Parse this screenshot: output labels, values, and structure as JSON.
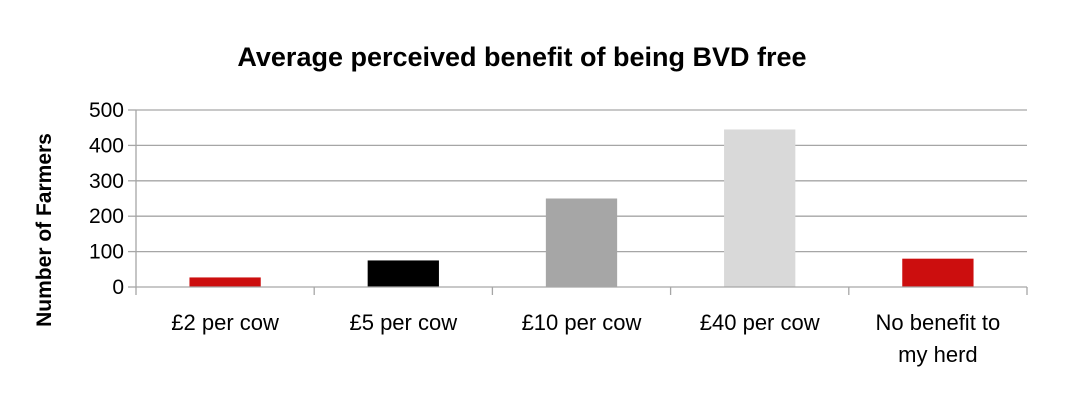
{
  "chart_data": {
    "type": "bar",
    "title": "Average perceived benefit of being BVD free",
    "xlabel": "",
    "ylabel": "Number of Farmers",
    "ylim": [
      0,
      500
    ],
    "yticks": [
      "0",
      "100",
      "200",
      "300",
      "400",
      "500"
    ],
    "grid": true,
    "legend": "none",
    "categories": [
      [
        "£2 per cow"
      ],
      [
        "£5 per cow"
      ],
      [
        "£10 per cow"
      ],
      [
        "£40 per cow"
      ],
      [
        "No benefit to",
        "my herd"
      ]
    ],
    "values": [
      27,
      75,
      250,
      445,
      80
    ],
    "colors": [
      "#cc0e0e",
      "#000000",
      "#a6a6a6",
      "#d9d9d9",
      "#cc0e0e"
    ]
  }
}
